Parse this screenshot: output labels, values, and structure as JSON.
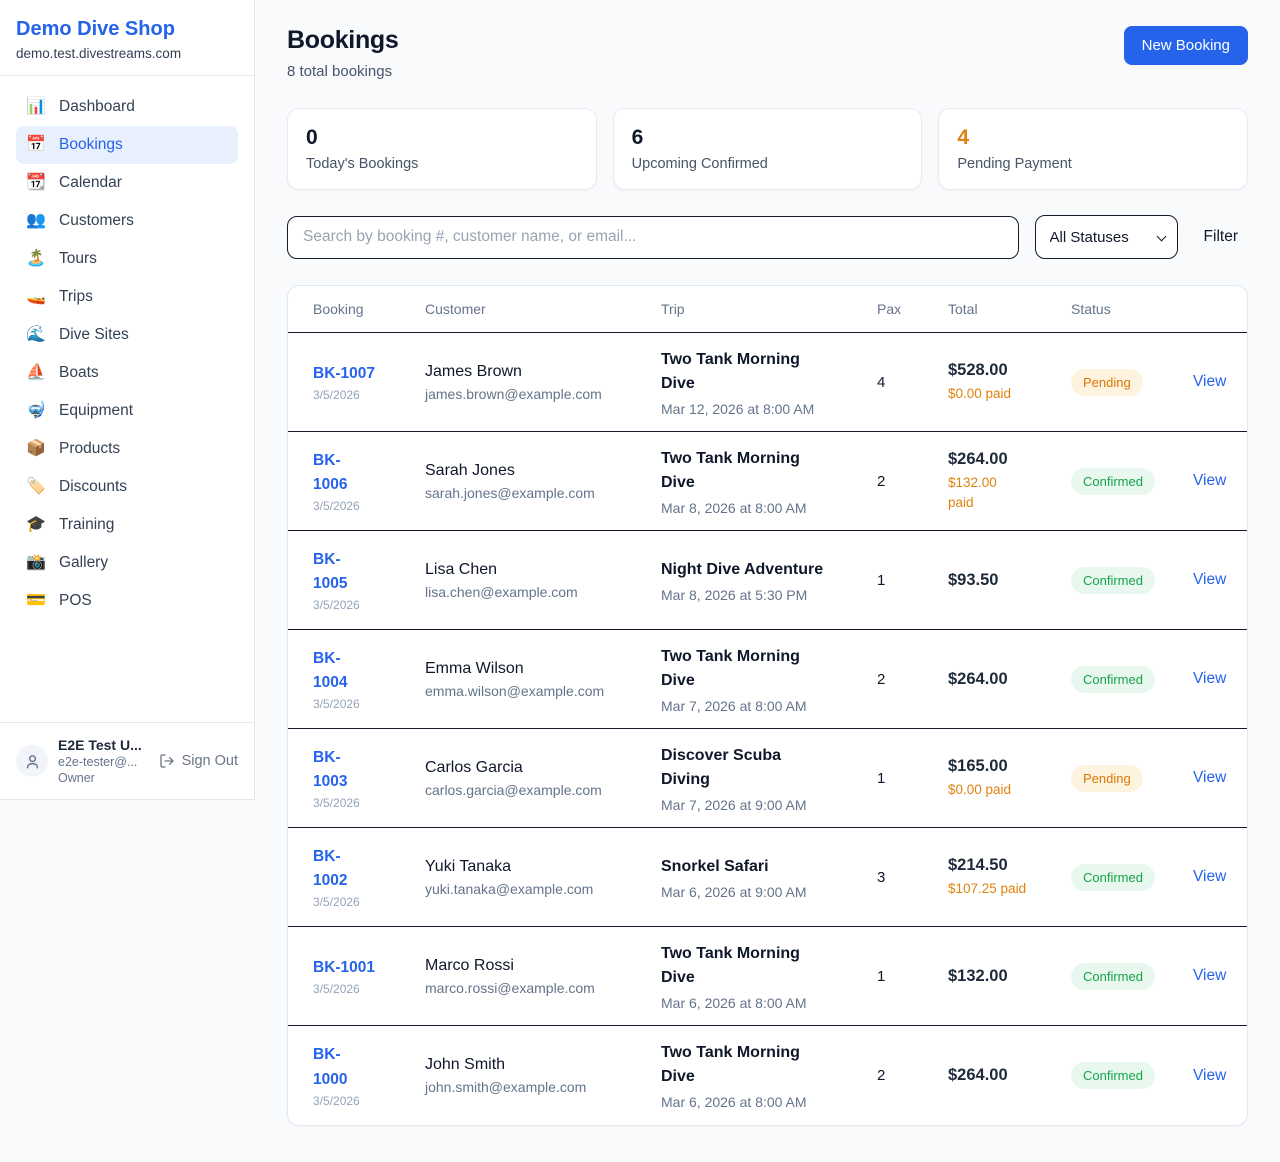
{
  "colors": {
    "accent": "#2563eb",
    "accent_bg": "#e8f0fe",
    "orange": "#df820f",
    "green": "#16a34a",
    "pending_badge_bg": "#fdf3de",
    "confirmed_badge_bg": "#e8f8ee",
    "page_bg": "#f8fafc"
  },
  "sidebar": {
    "brand": {
      "name": "Demo Dive Shop",
      "domain": "demo.test.divestreams.com"
    },
    "items": [
      {
        "icon": "📊",
        "label": "Dashboard",
        "active": false
      },
      {
        "icon": "📅",
        "label": "Bookings",
        "active": true
      },
      {
        "icon": "📆",
        "label": "Calendar",
        "active": false
      },
      {
        "icon": "👥",
        "label": "Customers",
        "active": false
      },
      {
        "icon": "🏝️",
        "label": "Tours",
        "active": false
      },
      {
        "icon": "🚤",
        "label": "Trips",
        "active": false
      },
      {
        "icon": "🌊",
        "label": "Dive Sites",
        "active": false
      },
      {
        "icon": "⛵",
        "label": "Boats",
        "active": false
      },
      {
        "icon": "🤿",
        "label": "Equipment",
        "active": false
      },
      {
        "icon": "📦",
        "label": "Products",
        "active": false
      },
      {
        "icon": "🏷️",
        "label": "Discounts",
        "active": false
      },
      {
        "icon": "🎓",
        "label": "Training",
        "active": false
      },
      {
        "icon": "📸",
        "label": "Gallery",
        "active": false
      },
      {
        "icon": "💳",
        "label": "POS",
        "active": false
      }
    ],
    "user": {
      "name": "E2E Test U...",
      "email": "e2e-tester@...",
      "role": "Owner",
      "sign_out_label": "Sign Out"
    }
  },
  "header": {
    "title": "Bookings",
    "subtitle": "8 total bookings",
    "new_booking_label": "New Booking"
  },
  "stats": [
    {
      "value": "0",
      "label": "Today's Bookings",
      "highlight": false
    },
    {
      "value": "6",
      "label": "Upcoming Confirmed",
      "highlight": false
    },
    {
      "value": "4",
      "label": "Pending Payment",
      "highlight": true
    }
  ],
  "filters": {
    "search_placeholder": "Search by booking #, customer name, or email...",
    "status_select_value": "All Statuses",
    "filter_label": "Filter"
  },
  "table": {
    "headers": [
      "Booking",
      "Customer",
      "Trip",
      "Pax",
      "Total",
      "Status"
    ],
    "rows": [
      {
        "ref": "BK-1007",
        "ref_display": "BK-1007",
        "date": "3/5/2026",
        "customer": "James Brown",
        "email": "james.brown@example.com",
        "trip": "Two Tank Morning Dive",
        "trip_datetime": "Mar 12, 2026 at 8:00 AM",
        "pax": "4",
        "total": "$528.00",
        "paid": "$0.00 paid",
        "status": "Pending",
        "view_label": "View"
      },
      {
        "ref": "BK-1006",
        "ref_display": "BK-\n1006",
        "date": "3/5/2026",
        "customer": "Sarah Jones",
        "email": "sarah.jones@example.com",
        "trip": "Two Tank Morning Dive",
        "trip_datetime": "Mar 8, 2026 at 8:00 AM",
        "pax": "2",
        "total": "$264.00",
        "paid": "$132.00\npaid",
        "status": "Confirmed",
        "view_label": "View"
      },
      {
        "ref": "BK-1005",
        "ref_display": "BK-\n1005",
        "date": "3/5/2026",
        "customer": "Lisa Chen",
        "email": "lisa.chen@example.com",
        "trip": "Night Dive Adventure",
        "trip_datetime": "Mar 8, 2026 at 5:30 PM",
        "pax": "1",
        "total": "$93.50",
        "paid": null,
        "status": "Confirmed",
        "view_label": "View"
      },
      {
        "ref": "BK-1004",
        "ref_display": "BK-\n1004",
        "date": "3/5/2026",
        "customer": "Emma Wilson",
        "email": "emma.wilson@example.com",
        "trip": "Two Tank Morning Dive",
        "trip_datetime": "Mar 7, 2026 at 8:00 AM",
        "pax": "2",
        "total": "$264.00",
        "paid": null,
        "status": "Confirmed",
        "view_label": "View"
      },
      {
        "ref": "BK-1003",
        "ref_display": "BK-\n1003",
        "date": "3/5/2026",
        "customer": "Carlos Garcia",
        "email": "carlos.garcia@example.com",
        "trip": "Discover Scuba Diving",
        "trip_datetime": "Mar 7, 2026 at 9:00 AM",
        "pax": "1",
        "total": "$165.00",
        "paid": "$0.00 paid",
        "status": "Pending",
        "view_label": "View"
      },
      {
        "ref": "BK-1002",
        "ref_display": "BK-\n1002",
        "date": "3/5/2026",
        "customer": "Yuki Tanaka",
        "email": "yuki.tanaka@example.com",
        "trip": "Snorkel Safari",
        "trip_datetime": "Mar 6, 2026 at 9:00 AM",
        "pax": "3",
        "total": "$214.50",
        "paid": "$107.25 paid",
        "status": "Confirmed",
        "view_label": "View"
      },
      {
        "ref": "BK-1001",
        "ref_display": "BK-1001",
        "date": "3/5/2026",
        "customer": "Marco Rossi",
        "email": "marco.rossi@example.com",
        "trip": "Two Tank Morning Dive",
        "trip_datetime": "Mar 6, 2026 at 8:00 AM",
        "pax": "1",
        "total": "$132.00",
        "paid": null,
        "status": "Confirmed",
        "view_label": "View"
      },
      {
        "ref": "BK-1000",
        "ref_display": "BK-\n1000",
        "date": "3/5/2026",
        "customer": "John Smith",
        "email": "john.smith@example.com",
        "trip": "Two Tank Morning Dive",
        "trip_datetime": "Mar 6, 2026 at 8:00 AM",
        "pax": "2",
        "total": "$264.00",
        "paid": null,
        "status": "Confirmed",
        "view_label": "View"
      }
    ]
  }
}
